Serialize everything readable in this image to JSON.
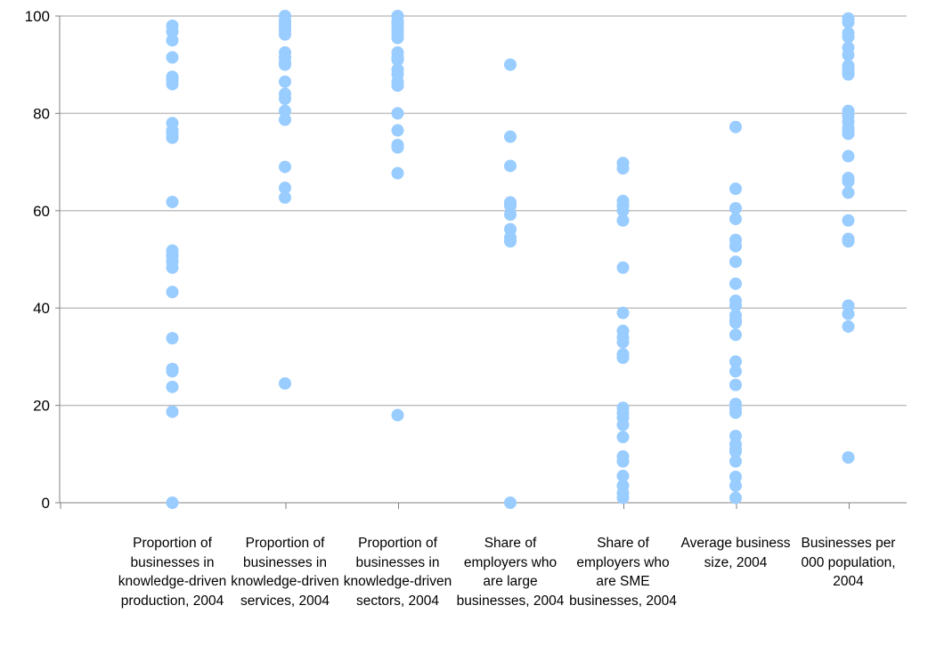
{
  "chart_data": {
    "type": "scatter",
    "title": "",
    "xlabel": "",
    "ylabel": "",
    "ylim": [
      0,
      100
    ],
    "yticks": [
      0,
      20,
      40,
      60,
      80,
      100
    ],
    "grid": true,
    "legend": "none",
    "marker_color": "#99ccff",
    "gridline_color": "#c0c0c0",
    "axis_color": "#808080",
    "categories": [
      "Proportion of businesses in knowledge-driven production, 2004",
      "Proportion of businesses in knowledge-driven services, 2004",
      "Proportion of businesses in knowledge-driven sectors, 2004",
      "Share of employers who are large businesses, 2004",
      "Share of employers who are SME businesses, 2004",
      "Average business size, 2004",
      "Businesses per 000 population, 2004"
    ],
    "points": [
      [
        98,
        96.8,
        95,
        91.5,
        87.5,
        86.8,
        86,
        78,
        76.5,
        75.8,
        75,
        61.8,
        51.8,
        51,
        50.5,
        49.5,
        48.3,
        43.3,
        33.8,
        27.5,
        27,
        23.8,
        18.7,
        0
      ],
      [
        100,
        99,
        98.3,
        97.8,
        97,
        96.2,
        92.5,
        91.5,
        90.5,
        90,
        86.5,
        84,
        83,
        80.5,
        78.7,
        69,
        64.7,
        62.7,
        24.5
      ],
      [
        100,
        99,
        98.5,
        97.7,
        97,
        96.2,
        95.5,
        92.5,
        91.5,
        91,
        89,
        88,
        86.5,
        85.7,
        80,
        76.5,
        73.5,
        73,
        67.7,
        18
      ],
      [
        90,
        75.2,
        69.2,
        61.7,
        61,
        59.2,
        56.2,
        54.5,
        53.7,
        0
      ],
      [
        69.8,
        68.7,
        62,
        61,
        60,
        58,
        48.3,
        39,
        35.3,
        34,
        33,
        30.5,
        29.8,
        19.5,
        18.5,
        17.5,
        16,
        13.5,
        9.5,
        8.5,
        5.5,
        3.5,
        2,
        1
      ],
      [
        77.2,
        64.5,
        60.5,
        58.3,
        54,
        52.7,
        49.5,
        45,
        41.5,
        40.5,
        38.5,
        37.5,
        37,
        34.5,
        29,
        27,
        24.2,
        20.3,
        19.3,
        18.5,
        13.7,
        12,
        11,
        10.5,
        8.5,
        5.3,
        3.5,
        1
      ],
      [
        99.5,
        98.7,
        96.5,
        95.7,
        93.5,
        92,
        89.8,
        89,
        88.5,
        88,
        80.5,
        79.5,
        78.3,
        77,
        76.5,
        75.8,
        71.2,
        66.7,
        66,
        63.7,
        58,
        54.2,
        53.7,
        40.5,
        38.8,
        36.2,
        9.3
      ]
    ]
  }
}
